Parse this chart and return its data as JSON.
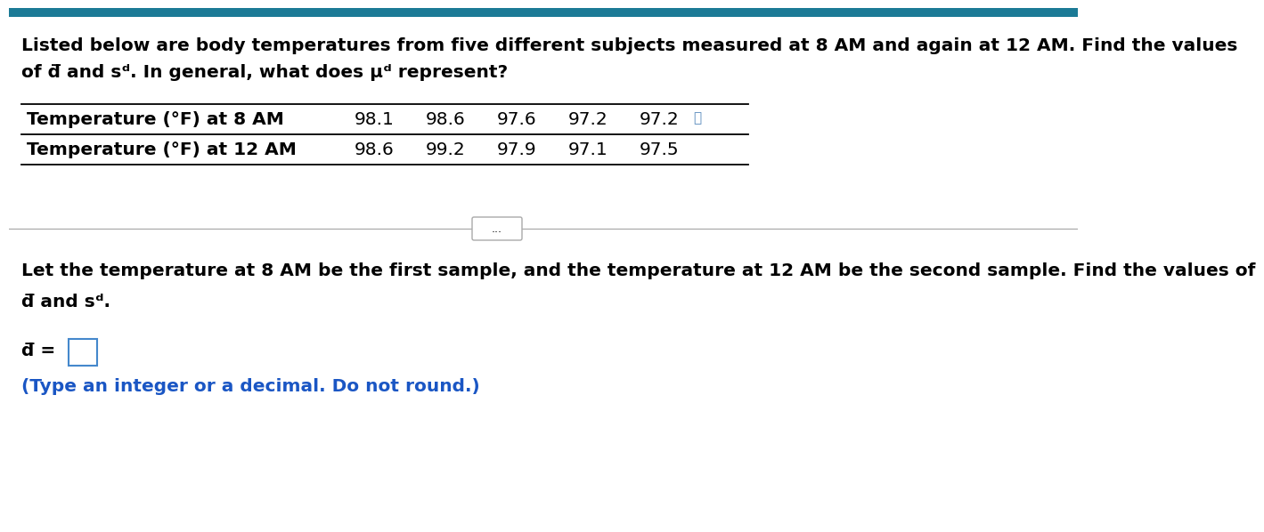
{
  "bg_color": "#ffffff",
  "top_bar_color": "#1B7A96",
  "title_text_line1": "Listed below are body temperatures from five different subjects measured at 8 AM and again at 12 AM. Find the values",
  "title_text_line2": "of d̅ and sᵈ. In general, what does μᵈ represent?",
  "row1_label": "Temperature (°F) at 8 AM",
  "row2_label": "Temperature (°F) at 12 AM",
  "row1_values": [
    "98.1",
    "98.6",
    "97.6",
    "97.2",
    "97.2"
  ],
  "row2_values": [
    "98.6",
    "99.2",
    "97.9",
    "97.1",
    "97.5"
  ],
  "dots_button_text": "...",
  "lower_text_line1": "Let the temperature at 8 AM be the first sample, and the temperature at 12 AM be the second sample. Find the values of",
  "lower_text_line2": "d̅ and sᵈ.",
  "answer_label": "d̅ =",
  "hint_text": "(Type an integer or a decimal. Do not round.)",
  "hint_color": "#1A56C4",
  "font_size_body": 14.5,
  "font_size_table": 14.5,
  "font_size_hint": 14.5
}
